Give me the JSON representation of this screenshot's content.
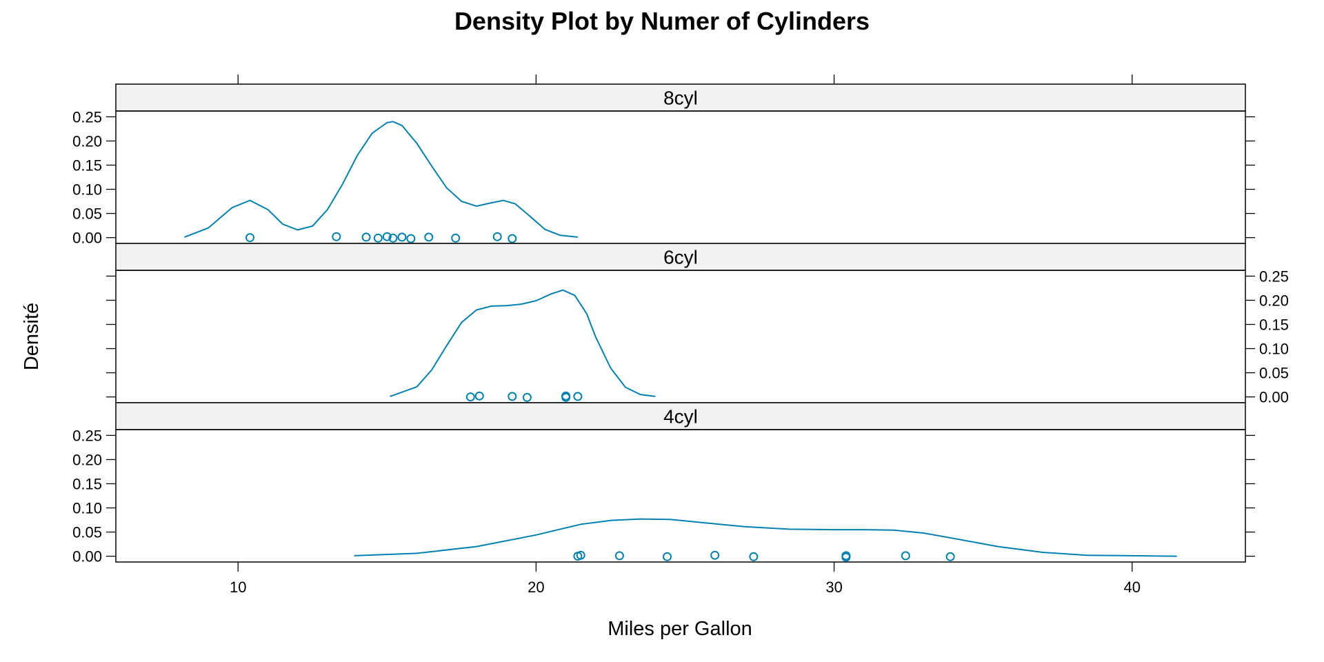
{
  "chart_data": {
    "type": "line",
    "title": "Density Plot by Numer of Cylinders",
    "xlabel": "Miles per Gallon",
    "ylabel": "Densité",
    "xlim": [
      5.9,
      43.8
    ],
    "ylim": [
      -0.012,
      0.262
    ],
    "x_ticks": [
      10,
      20,
      30,
      40
    ],
    "y_ticks": [
      0.0,
      0.05,
      0.1,
      0.15,
      0.2,
      0.25
    ],
    "y_tick_labels": [
      "0.00",
      "0.05",
      "0.10",
      "0.15",
      "0.20",
      "0.25"
    ],
    "color": "#0080b0",
    "panels": [
      {
        "strip": "8cyl",
        "density": {
          "x": [
            8.2,
            9.0,
            9.8,
            10.4,
            11.0,
            11.5,
            12.0,
            12.5,
            13.0,
            13.5,
            14.0,
            14.5,
            15.0,
            15.2,
            15.5,
            16.0,
            16.5,
            17.0,
            17.5,
            18.0,
            18.5,
            18.9,
            19.3,
            19.8,
            20.3,
            20.8,
            21.4
          ],
          "y": [
            0.001,
            0.02,
            0.062,
            0.077,
            0.058,
            0.028,
            0.016,
            0.024,
            0.058,
            0.11,
            0.17,
            0.216,
            0.238,
            0.24,
            0.232,
            0.195,
            0.148,
            0.103,
            0.075,
            0.065,
            0.072,
            0.077,
            0.07,
            0.044,
            0.017,
            0.005,
            0.001
          ]
        },
        "points": [
          10.4,
          13.3,
          14.3,
          14.7,
          15.0,
          15.2,
          15.5,
          15.8,
          16.4,
          17.3,
          18.7,
          19.2
        ]
      },
      {
        "strip": "6cyl",
        "density": {
          "x": [
            15.1,
            16.0,
            16.5,
            17.0,
            17.5,
            18.0,
            18.5,
            19.0,
            19.5,
            20.0,
            20.5,
            20.9,
            21.3,
            21.7,
            22.0,
            22.5,
            23.0,
            23.5,
            24.0
          ],
          "y": [
            0.001,
            0.021,
            0.056,
            0.106,
            0.154,
            0.18,
            0.188,
            0.189,
            0.192,
            0.199,
            0.213,
            0.221,
            0.21,
            0.172,
            0.124,
            0.06,
            0.02,
            0.005,
            0.001
          ]
        },
        "points": [
          17.8,
          18.1,
          19.2,
          19.7,
          21.0,
          21.0,
          21.4
        ]
      },
      {
        "strip": "4cyl",
        "density": {
          "x": [
            13.9,
            16.0,
            18.0,
            20.0,
            21.5,
            22.5,
            23.5,
            24.5,
            25.5,
            27.0,
            28.5,
            30.0,
            31.0,
            32.0,
            33.0,
            34.0,
            35.5,
            37.0,
            38.5,
            40.0,
            41.5
          ],
          "y": [
            0.001,
            0.006,
            0.02,
            0.044,
            0.066,
            0.074,
            0.077,
            0.076,
            0.07,
            0.061,
            0.056,
            0.055,
            0.055,
            0.054,
            0.048,
            0.037,
            0.02,
            0.008,
            0.002,
            0.001,
            0.0
          ]
        },
        "points": [
          21.4,
          21.5,
          22.8,
          24.4,
          26.0,
          27.3,
          30.4,
          30.4,
          32.4,
          33.9
        ]
      }
    ]
  }
}
